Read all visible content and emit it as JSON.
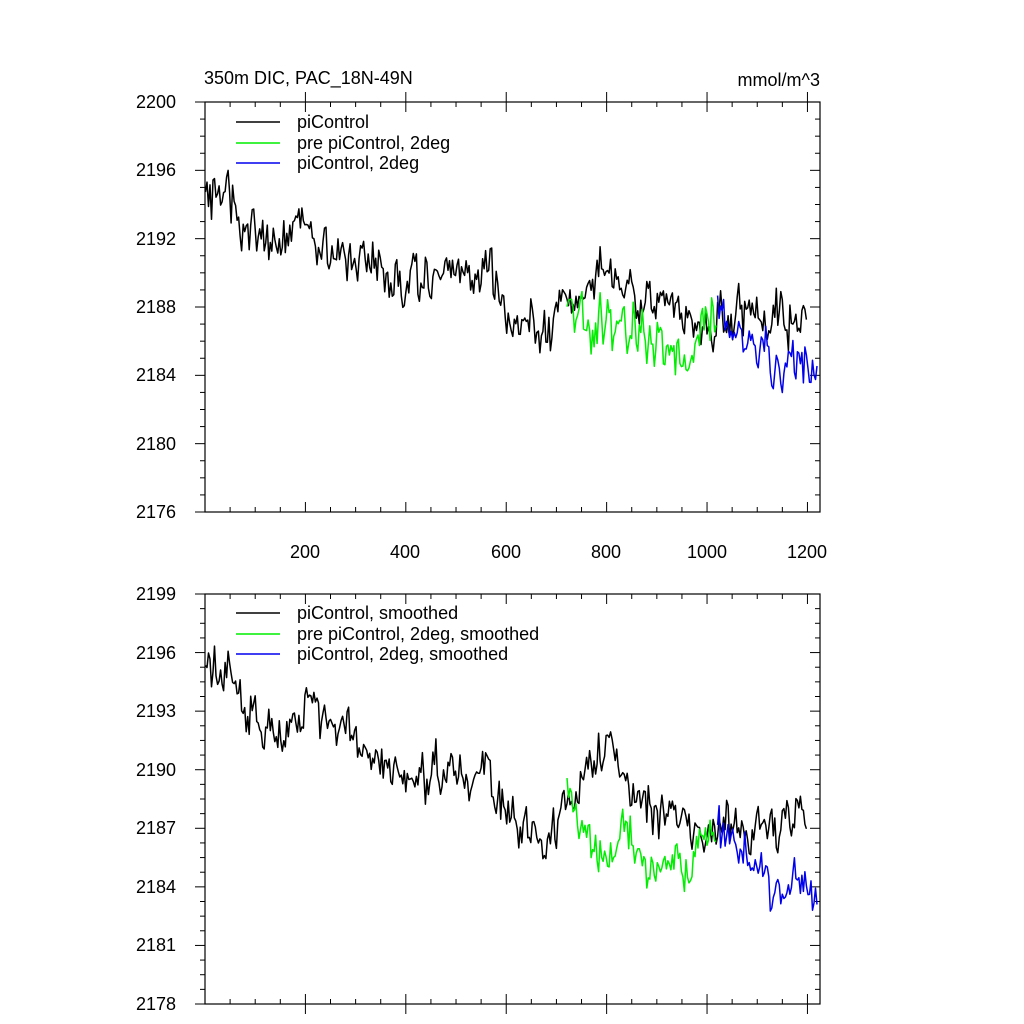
{
  "chart_data": [
    {
      "type": "line",
      "title": "350m DIC, PAC_18N-49N",
      "units_label": "mmol/m^3",
      "xlabel": "",
      "ylabel": "",
      "xlim": [
        0,
        1225
      ],
      "ylim": [
        2176,
        2200
      ],
      "x_ticks": [
        200,
        400,
        600,
        800,
        1000,
        1200
      ],
      "x_tick_labels": [
        "200",
        "400",
        "600",
        "800",
        "1000",
        "1200"
      ],
      "y_ticks": [
        2176,
        2180,
        2184,
        2188,
        2192,
        2196,
        2200
      ],
      "y_tick_labels": [
        "2176",
        "2180",
        "2184",
        "2188",
        "2192",
        "2196",
        "2200"
      ],
      "grid": false,
      "legend_position": "top-left",
      "series": [
        {
          "name": "piControl",
          "color": "#000000",
          "x": [
            1,
            1200
          ],
          "anchors_x": [
            0,
            40,
            80,
            120,
            160,
            200,
            240,
            280,
            320,
            360,
            400,
            440,
            480,
            520,
            560,
            600,
            640,
            680,
            720,
            760,
            800,
            840,
            880,
            920,
            960,
            1000,
            1040,
            1080,
            1120,
            1160,
            1200
          ],
          "anchors_y": [
            2194.8,
            2194.5,
            2193.0,
            2191.8,
            2192.0,
            2193.3,
            2191.5,
            2190.8,
            2190.5,
            2190.0,
            2189.6,
            2189.4,
            2190.1,
            2189.2,
            2190.7,
            2187.5,
            2187.0,
            2186.2,
            2188.0,
            2189.2,
            2190.5,
            2189.3,
            2188.6,
            2188.2,
            2187.8,
            2187.0,
            2187.8,
            2187.6,
            2187.0,
            2187.2,
            2187.4
          ],
          "noise_amplitude": 1.4
        },
        {
          "name": "pre piControl, 2deg",
          "color": "#00ee00",
          "x": [
            721,
            1020
          ],
          "anchors_x": [
            721,
            760,
            800,
            840,
            880,
            920,
            960,
            1000,
            1020
          ],
          "anchors_y": [
            2188.5,
            2187.2,
            2186.5,
            2187.0,
            2185.5,
            2185.6,
            2185.3,
            2186.5,
            2187.2
          ],
          "noise_amplitude": 1.5
        },
        {
          "name": "piControl, 2deg",
          "color": "#0000ee",
          "x": [
            1021,
            1220
          ],
          "anchors_x": [
            1021,
            1060,
            1100,
            1140,
            1180,
            1220
          ],
          "anchors_y": [
            2187.4,
            2186.5,
            2185.6,
            2184.0,
            2185.0,
            2183.2
          ],
          "noise_amplitude": 1.5
        }
      ]
    },
    {
      "type": "line",
      "title": "",
      "xlabel": "",
      "ylabel": "",
      "xlim": [
        0,
        1225
      ],
      "ylim": [
        2178,
        2199
      ],
      "x_ticks": [
        200,
        400,
        600,
        800,
        1000,
        1200
      ],
      "y_ticks": [
        2178,
        2181,
        2184,
        2187,
        2190,
        2193,
        2196,
        2199
      ],
      "y_tick_labels": [
        "2178",
        "2181",
        "2184",
        "2187",
        "2190",
        "2193",
        "2196",
        "2199"
      ],
      "grid": false,
      "legend_position": "top-left",
      "series": [
        {
          "name": "piControl, smoothed",
          "color": "#000000",
          "x": [
            1,
            1200
          ],
          "anchors_x": [
            0,
            40,
            80,
            120,
            160,
            200,
            240,
            280,
            320,
            360,
            400,
            440,
            480,
            520,
            560,
            600,
            640,
            680,
            720,
            760,
            800,
            840,
            880,
            920,
            960,
            1000,
            1040,
            1080,
            1120,
            1160,
            1200
          ],
          "anchors_y": [
            2195.5,
            2195.0,
            2193.5,
            2192.0,
            2192.0,
            2193.5,
            2192.0,
            2191.5,
            2190.8,
            2190.0,
            2189.5,
            2189.5,
            2190.5,
            2189.5,
            2191.0,
            2187.5,
            2186.8,
            2186.0,
            2187.8,
            2189.5,
            2191.5,
            2189.5,
            2188.3,
            2187.8,
            2187.5,
            2186.5,
            2187.5,
            2187.6,
            2187.0,
            2187.3,
            2187.6
          ],
          "noise_amplitude": 1.2
        },
        {
          "name": "pre piControl, 2deg, smoothed",
          "color": "#00ee00",
          "x": [
            721,
            1020
          ],
          "anchors_x": [
            721,
            760,
            800,
            840,
            880,
            920,
            960,
            1000,
            1020
          ],
          "anchors_y": [
            2188.5,
            2186.5,
            2186.0,
            2186.5,
            2185.0,
            2185.2,
            2185.0,
            2186.5,
            2187.0
          ],
          "noise_amplitude": 1.3
        },
        {
          "name": "piControl, 2deg, smoothed",
          "color": "#0000ee",
          "x": [
            1021,
            1220
          ],
          "anchors_x": [
            1021,
            1060,
            1100,
            1140,
            1180,
            1220
          ],
          "anchors_y": [
            2186.8,
            2186.3,
            2185.0,
            2183.8,
            2184.6,
            2183.0
          ],
          "noise_amplitude": 1.2
        }
      ]
    }
  ]
}
